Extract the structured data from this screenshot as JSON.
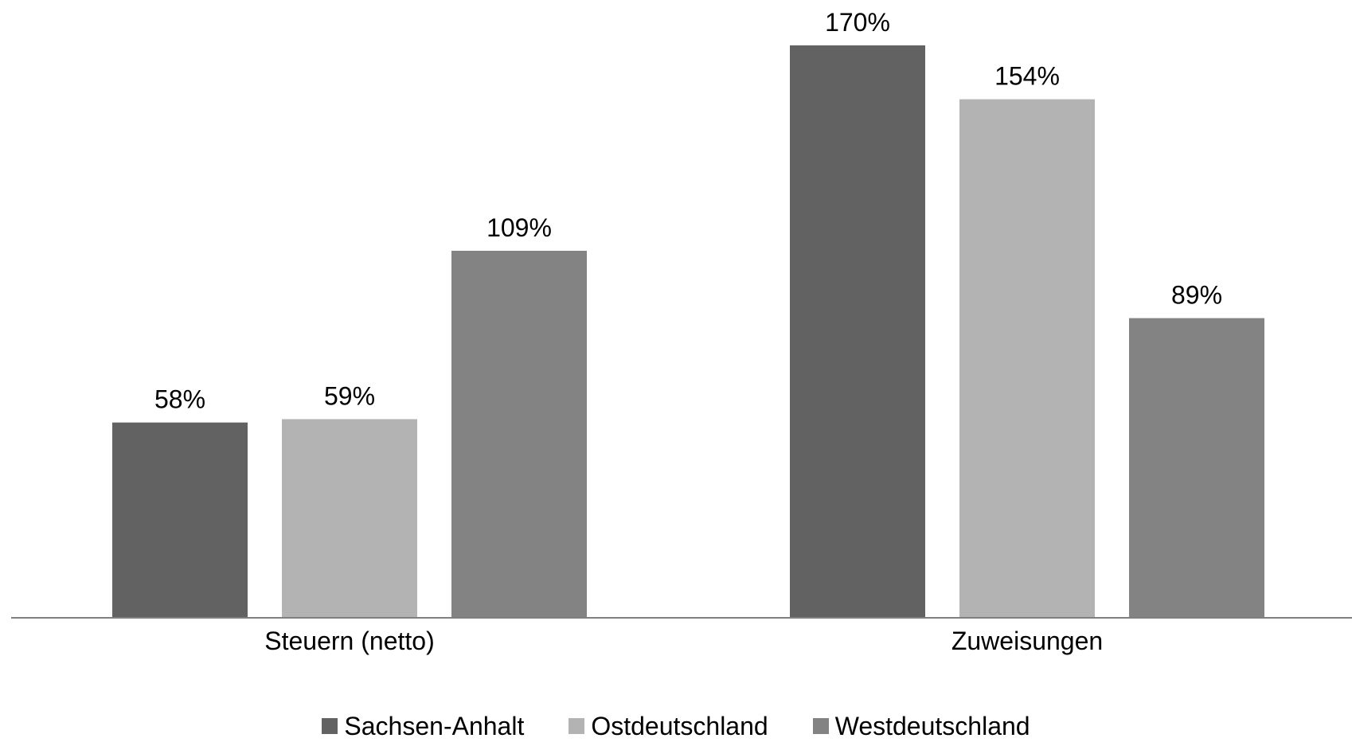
{
  "chart_data": {
    "type": "bar",
    "categories": [
      "Steuern (netto)",
      "Zuweisungen"
    ],
    "series": [
      {
        "name": "Sachsen-Anhalt",
        "values": [
          58,
          170
        ],
        "labels": [
          "58%",
          "170%"
        ],
        "color": "#626262"
      },
      {
        "name": "Ostdeutschland",
        "values": [
          59,
          154
        ],
        "labels": [
          "59%",
          "154%"
        ],
        "color": "#b3b3b3"
      },
      {
        "name": "Westdeutschland",
        "values": [
          109,
          89
        ],
        "labels": [
          "109%",
          "89%"
        ],
        "color": "#838383"
      }
    ],
    "unit": "%",
    "ylim": [
      0,
      170
    ],
    "grid": false,
    "legend_position": "bottom"
  }
}
